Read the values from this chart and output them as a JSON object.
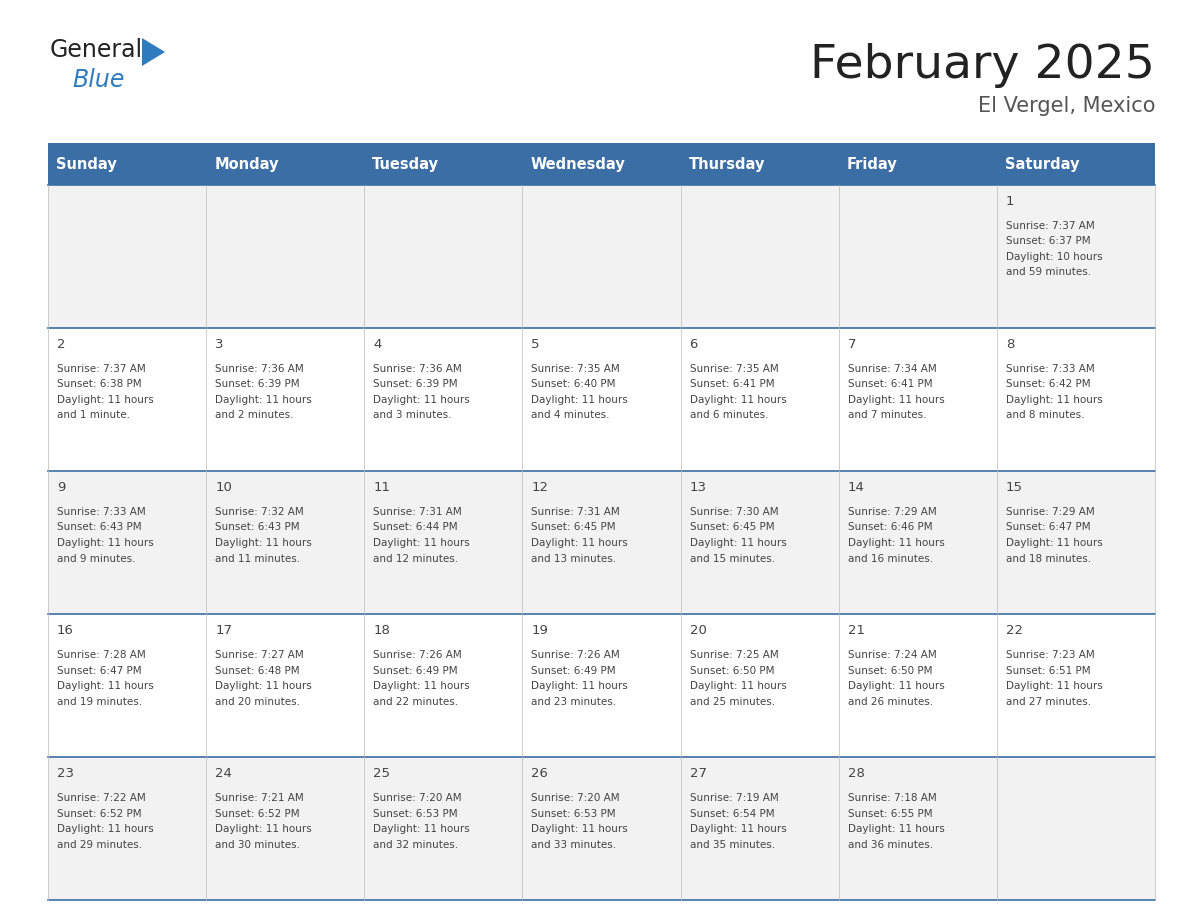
{
  "title": "February 2025",
  "subtitle": "El Vergel, Mexico",
  "header_color": "#3a6ea5",
  "header_text_color": "#ffffff",
  "cell_bg_even": "#f2f2f2",
  "cell_bg_odd": "#ffffff",
  "day_headers": [
    "Sunday",
    "Monday",
    "Tuesday",
    "Wednesday",
    "Thursday",
    "Friday",
    "Saturday"
  ],
  "border_color": "#3a6ea5",
  "text_color": "#444444",
  "days": [
    {
      "day": 1,
      "col": 6,
      "row": 0,
      "sunrise": "7:37 AM",
      "sunset": "6:37 PM",
      "daylight_line1": "Daylight: 10 hours",
      "daylight_line2": "and 59 minutes."
    },
    {
      "day": 2,
      "col": 0,
      "row": 1,
      "sunrise": "7:37 AM",
      "sunset": "6:38 PM",
      "daylight_line1": "Daylight: 11 hours",
      "daylight_line2": "and 1 minute."
    },
    {
      "day": 3,
      "col": 1,
      "row": 1,
      "sunrise": "7:36 AM",
      "sunset": "6:39 PM",
      "daylight_line1": "Daylight: 11 hours",
      "daylight_line2": "and 2 minutes."
    },
    {
      "day": 4,
      "col": 2,
      "row": 1,
      "sunrise": "7:36 AM",
      "sunset": "6:39 PM",
      "daylight_line1": "Daylight: 11 hours",
      "daylight_line2": "and 3 minutes."
    },
    {
      "day": 5,
      "col": 3,
      "row": 1,
      "sunrise": "7:35 AM",
      "sunset": "6:40 PM",
      "daylight_line1": "Daylight: 11 hours",
      "daylight_line2": "and 4 minutes."
    },
    {
      "day": 6,
      "col": 4,
      "row": 1,
      "sunrise": "7:35 AM",
      "sunset": "6:41 PM",
      "daylight_line1": "Daylight: 11 hours",
      "daylight_line2": "and 6 minutes."
    },
    {
      "day": 7,
      "col": 5,
      "row": 1,
      "sunrise": "7:34 AM",
      "sunset": "6:41 PM",
      "daylight_line1": "Daylight: 11 hours",
      "daylight_line2": "and 7 minutes."
    },
    {
      "day": 8,
      "col": 6,
      "row": 1,
      "sunrise": "7:33 AM",
      "sunset": "6:42 PM",
      "daylight_line1": "Daylight: 11 hours",
      "daylight_line2": "and 8 minutes."
    },
    {
      "day": 9,
      "col": 0,
      "row": 2,
      "sunrise": "7:33 AM",
      "sunset": "6:43 PM",
      "daylight_line1": "Daylight: 11 hours",
      "daylight_line2": "and 9 minutes."
    },
    {
      "day": 10,
      "col": 1,
      "row": 2,
      "sunrise": "7:32 AM",
      "sunset": "6:43 PM",
      "daylight_line1": "Daylight: 11 hours",
      "daylight_line2": "and 11 minutes."
    },
    {
      "day": 11,
      "col": 2,
      "row": 2,
      "sunrise": "7:31 AM",
      "sunset": "6:44 PM",
      "daylight_line1": "Daylight: 11 hours",
      "daylight_line2": "and 12 minutes."
    },
    {
      "day": 12,
      "col": 3,
      "row": 2,
      "sunrise": "7:31 AM",
      "sunset": "6:45 PM",
      "daylight_line1": "Daylight: 11 hours",
      "daylight_line2": "and 13 minutes."
    },
    {
      "day": 13,
      "col": 4,
      "row": 2,
      "sunrise": "7:30 AM",
      "sunset": "6:45 PM",
      "daylight_line1": "Daylight: 11 hours",
      "daylight_line2": "and 15 minutes."
    },
    {
      "day": 14,
      "col": 5,
      "row": 2,
      "sunrise": "7:29 AM",
      "sunset": "6:46 PM",
      "daylight_line1": "Daylight: 11 hours",
      "daylight_line2": "and 16 minutes."
    },
    {
      "day": 15,
      "col": 6,
      "row": 2,
      "sunrise": "7:29 AM",
      "sunset": "6:47 PM",
      "daylight_line1": "Daylight: 11 hours",
      "daylight_line2": "and 18 minutes."
    },
    {
      "day": 16,
      "col": 0,
      "row": 3,
      "sunrise": "7:28 AM",
      "sunset": "6:47 PM",
      "daylight_line1": "Daylight: 11 hours",
      "daylight_line2": "and 19 minutes."
    },
    {
      "day": 17,
      "col": 1,
      "row": 3,
      "sunrise": "7:27 AM",
      "sunset": "6:48 PM",
      "daylight_line1": "Daylight: 11 hours",
      "daylight_line2": "and 20 minutes."
    },
    {
      "day": 18,
      "col": 2,
      "row": 3,
      "sunrise": "7:26 AM",
      "sunset": "6:49 PM",
      "daylight_line1": "Daylight: 11 hours",
      "daylight_line2": "and 22 minutes."
    },
    {
      "day": 19,
      "col": 3,
      "row": 3,
      "sunrise": "7:26 AM",
      "sunset": "6:49 PM",
      "daylight_line1": "Daylight: 11 hours",
      "daylight_line2": "and 23 minutes."
    },
    {
      "day": 20,
      "col": 4,
      "row": 3,
      "sunrise": "7:25 AM",
      "sunset": "6:50 PM",
      "daylight_line1": "Daylight: 11 hours",
      "daylight_line2": "and 25 minutes."
    },
    {
      "day": 21,
      "col": 5,
      "row": 3,
      "sunrise": "7:24 AM",
      "sunset": "6:50 PM",
      "daylight_line1": "Daylight: 11 hours",
      "daylight_line2": "and 26 minutes."
    },
    {
      "day": 22,
      "col": 6,
      "row": 3,
      "sunrise": "7:23 AM",
      "sunset": "6:51 PM",
      "daylight_line1": "Daylight: 11 hours",
      "daylight_line2": "and 27 minutes."
    },
    {
      "day": 23,
      "col": 0,
      "row": 4,
      "sunrise": "7:22 AM",
      "sunset": "6:52 PM",
      "daylight_line1": "Daylight: 11 hours",
      "daylight_line2": "and 29 minutes."
    },
    {
      "day": 24,
      "col": 1,
      "row": 4,
      "sunrise": "7:21 AM",
      "sunset": "6:52 PM",
      "daylight_line1": "Daylight: 11 hours",
      "daylight_line2": "and 30 minutes."
    },
    {
      "day": 25,
      "col": 2,
      "row": 4,
      "sunrise": "7:20 AM",
      "sunset": "6:53 PM",
      "daylight_line1": "Daylight: 11 hours",
      "daylight_line2": "and 32 minutes."
    },
    {
      "day": 26,
      "col": 3,
      "row": 4,
      "sunrise": "7:20 AM",
      "sunset": "6:53 PM",
      "daylight_line1": "Daylight: 11 hours",
      "daylight_line2": "and 33 minutes."
    },
    {
      "day": 27,
      "col": 4,
      "row": 4,
      "sunrise": "7:19 AM",
      "sunset": "6:54 PM",
      "daylight_line1": "Daylight: 11 hours",
      "daylight_line2": "and 35 minutes."
    },
    {
      "day": 28,
      "col": 5,
      "row": 4,
      "sunrise": "7:18 AM",
      "sunset": "6:55 PM",
      "daylight_line1": "Daylight: 11 hours",
      "daylight_line2": "and 36 minutes."
    }
  ],
  "n_rows": 5,
  "n_cols": 7
}
